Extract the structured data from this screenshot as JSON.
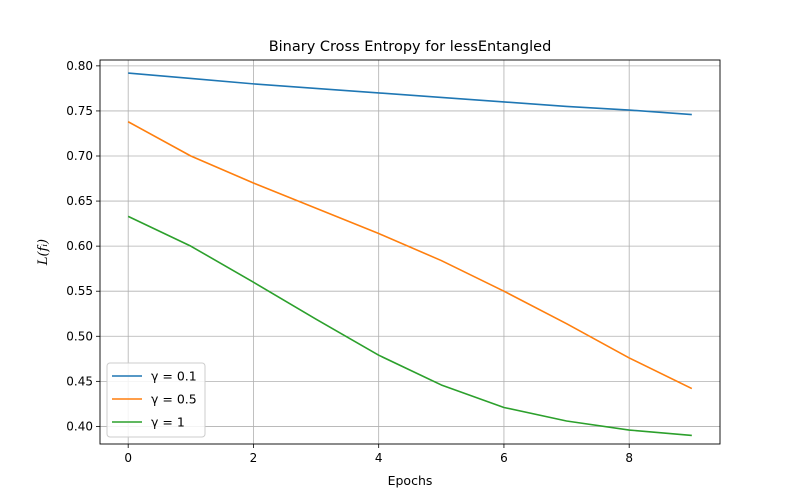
{
  "chart_data": {
    "type": "line",
    "title": "Binary Cross Entropy for lessEntangled",
    "xlabel": "Epochs",
    "ylabel": "L(fᵢ)",
    "xlim": [
      -0.45,
      9.45
    ],
    "ylim": [
      0.3805,
      0.8065
    ],
    "xticks": [
      0,
      2,
      4,
      6,
      8
    ],
    "yticks": [
      0.4,
      0.45,
      0.5,
      0.55,
      0.6,
      0.65,
      0.7,
      0.75,
      0.8
    ],
    "ytick_labels": [
      "0.40",
      "0.45",
      "0.50",
      "0.55",
      "0.60",
      "0.65",
      "0.70",
      "0.75",
      "0.80"
    ],
    "grid": true,
    "legend_position": "lower-left",
    "x": [
      0,
      1,
      2,
      3,
      4,
      5,
      6,
      7,
      8,
      9
    ],
    "series": [
      {
        "name": "γ = 0.1",
        "color": "#1f77b4",
        "values": [
          0.792,
          0.786,
          0.78,
          0.775,
          0.77,
          0.765,
          0.76,
          0.755,
          0.751,
          0.746
        ]
      },
      {
        "name": "γ = 0.5",
        "color": "#ff7f0e",
        "values": [
          0.738,
          0.7,
          0.67,
          0.642,
          0.614,
          0.584,
          0.55,
          0.514,
          0.476,
          0.442
        ]
      },
      {
        "name": "γ = 1",
        "color": "#2ca02c",
        "values": [
          0.633,
          0.6,
          0.56,
          0.519,
          0.479,
          0.446,
          0.421,
          0.406,
          0.396,
          0.39
        ]
      }
    ]
  }
}
